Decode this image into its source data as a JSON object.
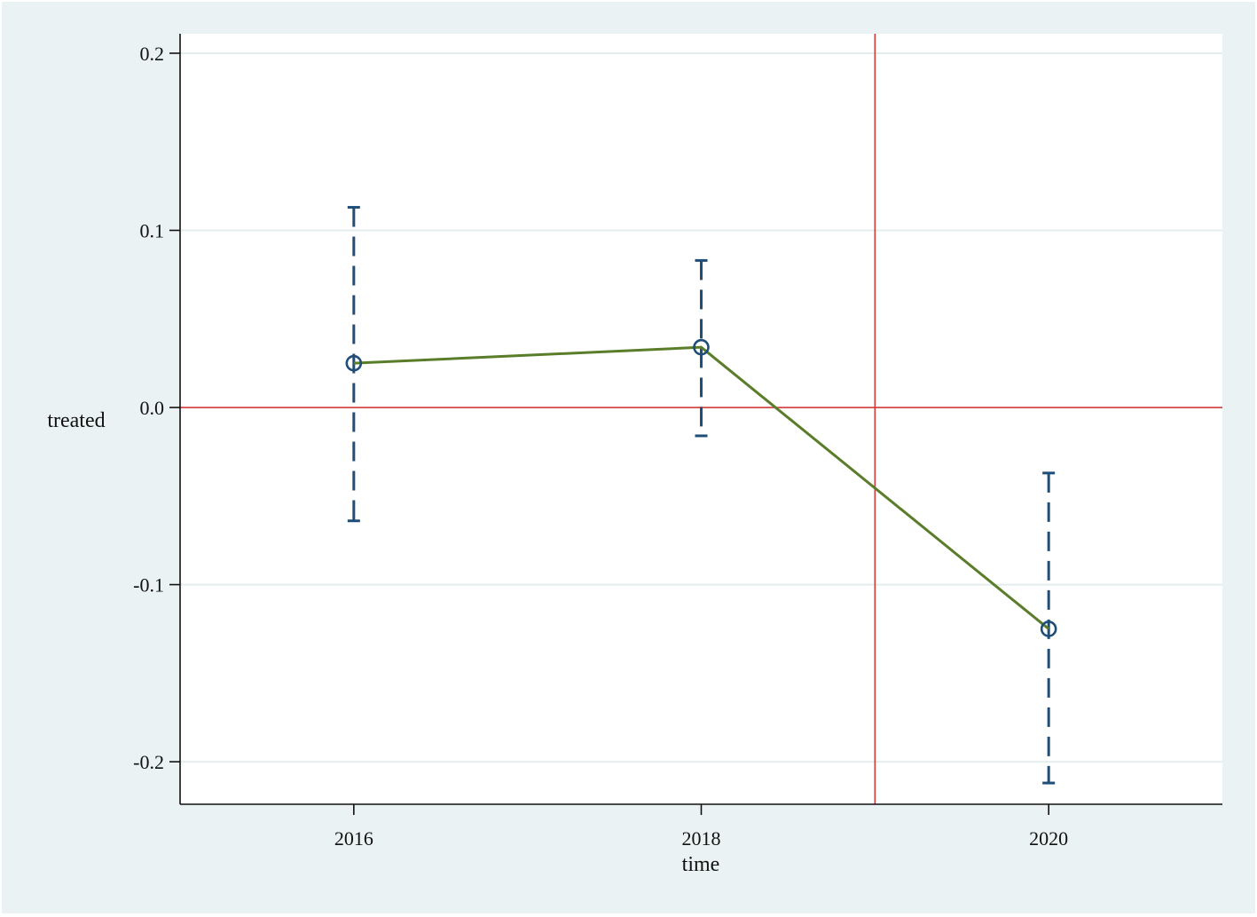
{
  "chart_data": {
    "type": "line",
    "title": "",
    "xlabel": "time",
    "ylabel": "treated",
    "xlim": [
      2015,
      2021
    ],
    "ylim": [
      -0.224,
      0.211
    ],
    "x_ticks": [
      2016,
      2018,
      2020
    ],
    "x_tick_labels": [
      "2016",
      "2018",
      "2020"
    ],
    "y_ticks": [
      -0.2,
      -0.1,
      0.0,
      0.1,
      0.2
    ],
    "y_tick_labels": [
      "-0.2",
      "-0.1",
      "0.0",
      "0.1",
      "0.2"
    ],
    "grid": "horizontal",
    "legend": "none",
    "series": [
      {
        "x": [
          2016,
          2018,
          2020
        ],
        "y": [
          0.025,
          0.034,
          -0.125
        ],
        "ci_lower": [
          -0.064,
          -0.016,
          -0.212
        ],
        "ci_upper": [
          0.113,
          0.083,
          -0.037
        ]
      }
    ],
    "reference_lines": {
      "horizontal_y": 0.0,
      "vertical_x": 2019
    },
    "colors": {
      "background": "#eaf2f3",
      "plot_area": "#ffffff",
      "gridline": "#e4eeef",
      "reference": "#d03a3a",
      "line": "#5a7d2a",
      "marker": "#1f4e79",
      "error_bar": "#1f4e79"
    }
  }
}
